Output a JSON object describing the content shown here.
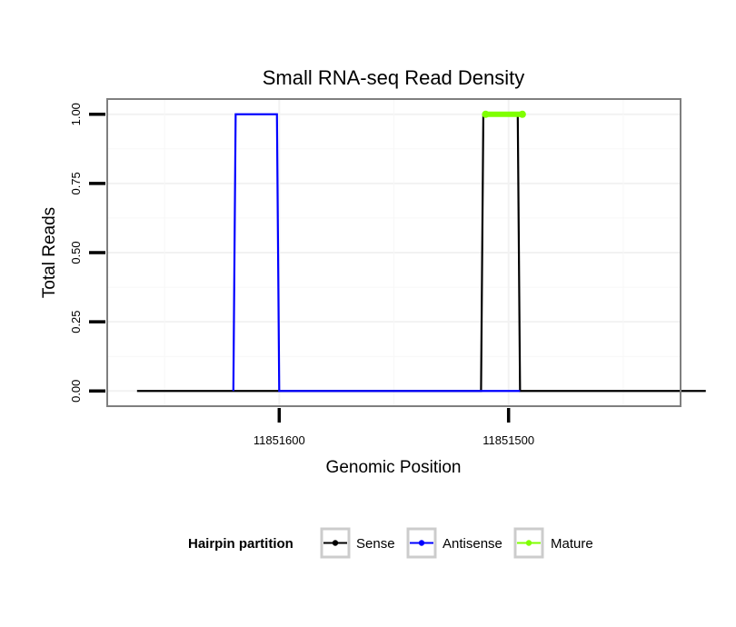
{
  "chart_data": {
    "type": "line",
    "title": "Small RNA-seq Read Density",
    "xlabel": "Genomic Position",
    "ylabel": "Total Reads",
    "x_reversed": true,
    "xlim": [
      11851675,
      11851425
    ],
    "ylim": [
      -0.055,
      1.055
    ],
    "x_ticks": [
      {
        "value": 11851600,
        "label": "11851600"
      },
      {
        "value": 11851500,
        "label": "11851500"
      }
    ],
    "y_ticks": [
      {
        "value": 0,
        "label": "0.00"
      },
      {
        "value": 0.25,
        "label": "0.25"
      },
      {
        "value": 0.5,
        "label": "0.50"
      },
      {
        "value": 0.75,
        "label": "0.75"
      },
      {
        "value": 1,
        "label": "1.00"
      }
    ],
    "grid": true,
    "legend": {
      "title": "Hairpin partition",
      "position": "bottom"
    },
    "series": [
      {
        "name": "Sense",
        "color": "#000000",
        "x": [
          11851662,
          11851620,
          11851600,
          11851512,
          11851511,
          11851496,
          11851495,
          11851414
        ],
        "y": [
          0,
          0,
          0,
          0,
          1,
          1,
          0,
          0
        ]
      },
      {
        "name": "Antisense",
        "color": "#0000ff",
        "x": [
          11851620,
          11851619,
          11851601,
          11851600,
          11851512,
          11851495
        ],
        "y": [
          0,
          1,
          1,
          0,
          0,
          0
        ]
      },
      {
        "name": "Mature",
        "color": "#7fff00",
        "x": [
          11851510,
          11851494
        ],
        "y": [
          1,
          1
        ]
      }
    ]
  }
}
